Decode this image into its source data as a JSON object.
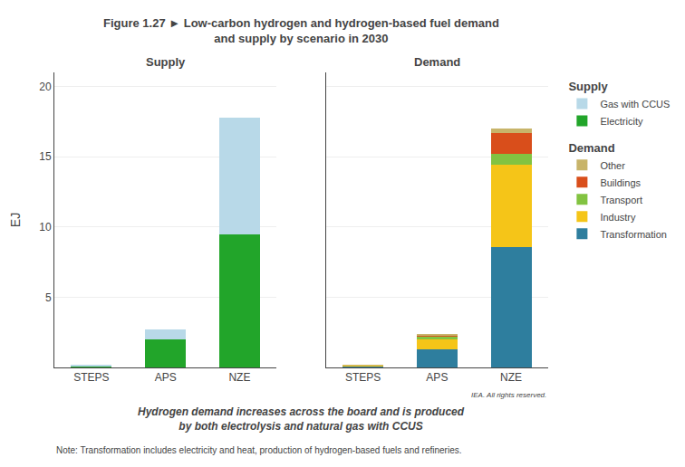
{
  "chart_data": [
    {
      "type": "bar",
      "title": "Supply",
      "stacked": true,
      "categories": [
        "STEPS",
        "APS",
        "NZE"
      ],
      "series": [
        {
          "name": "Electricity",
          "color": "#22A52A",
          "values": [
            0.1,
            2.0,
            9.5
          ]
        },
        {
          "name": "Gas with CCUS",
          "color": "#B8D9E8",
          "values": [
            0.05,
            0.7,
            8.3
          ]
        }
      ],
      "ylabel": "EJ",
      "ylim": [
        0,
        21
      ],
      "yticks": [
        5,
        10,
        15,
        20
      ],
      "grid": true,
      "legend": "right",
      "annotations": [
        "Figure 1.27",
        "►",
        "Low-carbon hydrogen and hydrogen-based fuel demand",
        "and supply by scenario in 2030",
        "Hydrogen demand increases across the board and is produced\nby both electrolysis and natural gas with CCUS",
        "Note: Transformation includes electricity and heat, production of hydrogen-based fuels and refineries."
      ]
    },
    {
      "type": "bar",
      "title": "Demand",
      "stacked": true,
      "categories": [
        "STEPS",
        "APS",
        "NZE"
      ],
      "series": [
        {
          "name": "Transformation",
          "color": "#2E7E9E",
          "values": [
            0.1,
            1.3,
            8.6
          ]
        },
        {
          "name": "Industry",
          "color": "#F5C518",
          "values": [
            0.05,
            0.7,
            5.8
          ]
        },
        {
          "name": "Transport",
          "color": "#82C341",
          "values": [
            0.02,
            0.2,
            0.8
          ]
        },
        {
          "name": "Buildings",
          "color": "#D94E1B",
          "values": [
            0.01,
            0.1,
            1.5
          ]
        },
        {
          "name": "Other",
          "color": "#C8B46A",
          "values": [
            0.005,
            0.05,
            0.3
          ]
        }
      ],
      "ylim": [
        0,
        21
      ],
      "yticks": [
        5,
        10,
        15,
        20
      ],
      "grid": true,
      "legend": "right",
      "tick_labels": "x",
      "annotations": [
        "IEA. All rights reserved."
      ]
    }
  ]
}
